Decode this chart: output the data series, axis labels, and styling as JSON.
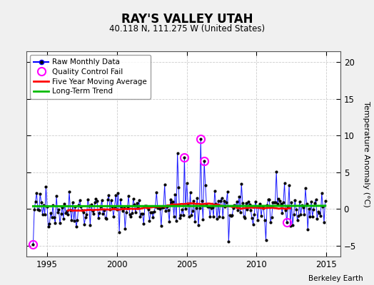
{
  "title": "RAY'S VALLEY UTAH",
  "subtitle": "40.118 N, 111.275 W (United States)",
  "ylabel": "Temperature Anomaly (°C)",
  "credit": "Berkeley Earth",
  "xlim": [
    1993.5,
    2016.0
  ],
  "ylim": [
    -6.5,
    21.5
  ],
  "yticks": [
    -5,
    0,
    5,
    10,
    15,
    20
  ],
  "xticks": [
    1995,
    2000,
    2005,
    2010,
    2015
  ],
  "bg_color": "#f0f0f0",
  "plot_bg": "#ffffff",
  "line_color": "#0000ff",
  "dot_color": "#000000",
  "ma_color": "#ff0000",
  "trend_color": "#00bb00",
  "qc_color": "#ff00ff",
  "seed": 42,
  "n_months": 252,
  "start_year": 1994,
  "start_month": 1
}
